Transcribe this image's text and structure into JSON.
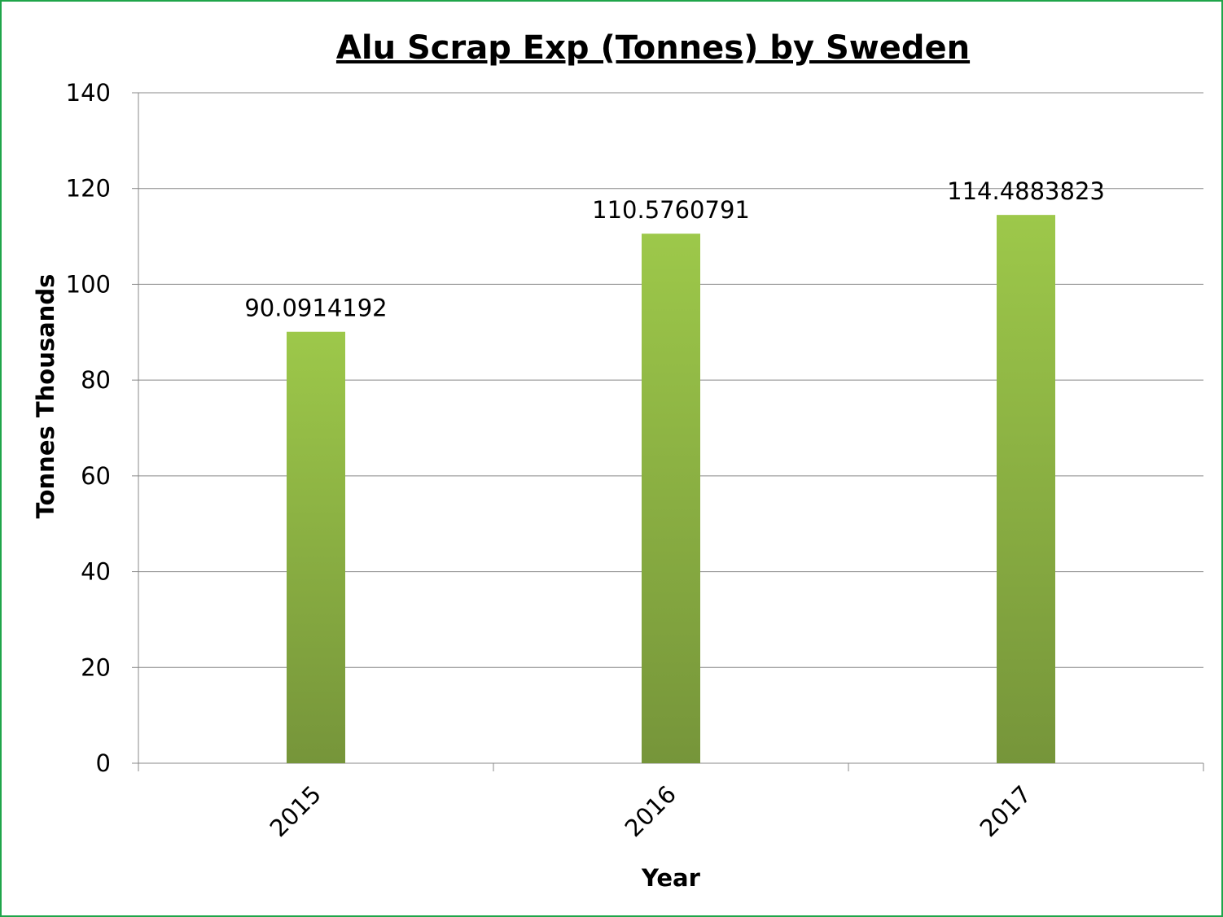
{
  "chart_data": {
    "type": "bar",
    "title": "Alu Scrap Exp (Tonnes) by Sweden",
    "xlabel": "Year",
    "ylabel": "Tonnes Thousands",
    "categories": [
      "2015",
      "2016",
      "2017"
    ],
    "values": [
      90.0914192,
      110.5760791,
      114.4883823
    ],
    "data_labels": [
      "90.0914192",
      "110.5760791",
      "114.4883823"
    ],
    "ylim": [
      0,
      140
    ],
    "yticks": [
      0,
      20,
      40,
      60,
      80,
      100,
      120,
      140
    ],
    "grid": true,
    "legend": "none",
    "colors": {
      "bar_top": "#9dc84a",
      "bar_bottom": "#76953a",
      "frame": "#1fa54a",
      "grid": "#888888"
    }
  }
}
